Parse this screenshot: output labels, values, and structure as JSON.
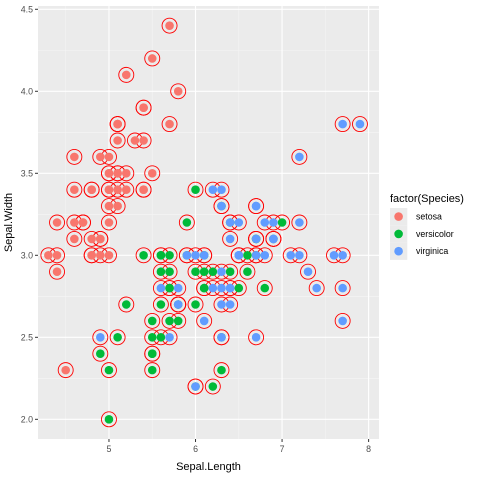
{
  "chart_data": {
    "type": "scatter",
    "xlabel": "Sepal.Length",
    "ylabel": "Sepal.Width",
    "xlim": [
      4.18,
      8.12
    ],
    "ylim": [
      1.88,
      4.52
    ],
    "x_ticks": [
      5,
      6,
      7,
      8
    ],
    "y_ticks": [
      2.0,
      2.5,
      3.0,
      3.5,
      4.0,
      4.5
    ],
    "x_tick_labels": [
      "5",
      "6",
      "7",
      "8"
    ],
    "y_tick_labels": [
      "2.0",
      "2.5",
      "3.0",
      "3.5",
      "4.0",
      "4.5"
    ],
    "grid": true,
    "legend": {
      "title": "factor(Species)",
      "position": "right",
      "entries": [
        {
          "label": "setosa",
          "color": "#F8766D"
        },
        {
          "label": "versicolor",
          "color": "#00BA38"
        },
        {
          "label": "virginica",
          "color": "#619CFF"
        }
      ]
    },
    "ring_color": "#FF0000",
    "series": [
      {
        "name": "setosa",
        "color": "#F8766D",
        "x": [
          5.1,
          4.9,
          4.7,
          4.6,
          5.0,
          5.4,
          4.6,
          5.0,
          4.4,
          4.9,
          5.4,
          4.8,
          4.8,
          4.3,
          5.8,
          5.7,
          5.4,
          5.1,
          5.7,
          5.1,
          5.4,
          5.1,
          4.6,
          5.1,
          4.8,
          5.0,
          5.0,
          5.2,
          5.2,
          4.7,
          4.8,
          5.4,
          5.2,
          5.5,
          4.9,
          5.0,
          5.5,
          4.9,
          4.4,
          5.1,
          5.0,
          4.5,
          4.4,
          5.0,
          5.1,
          4.8,
          5.1,
          4.6,
          5.3,
          5.0
        ],
        "y": [
          3.5,
          3.0,
          3.2,
          3.1,
          3.6,
          3.9,
          3.4,
          3.4,
          2.9,
          3.1,
          3.7,
          3.4,
          3.0,
          3.0,
          4.0,
          4.4,
          3.9,
          3.5,
          3.8,
          3.8,
          3.4,
          3.7,
          3.6,
          3.3,
          3.4,
          3.0,
          3.4,
          3.5,
          3.4,
          3.2,
          3.1,
          3.4,
          4.1,
          4.2,
          3.1,
          3.2,
          3.5,
          3.6,
          3.0,
          3.4,
          3.5,
          2.3,
          3.2,
          3.5,
          3.8,
          3.0,
          3.8,
          3.2,
          3.7,
          3.3
        ]
      },
      {
        "name": "versicolor",
        "color": "#00BA38",
        "x": [
          7.0,
          6.4,
          6.9,
          5.5,
          6.5,
          5.7,
          6.3,
          4.9,
          6.6,
          5.2,
          5.0,
          5.9,
          6.0,
          6.1,
          5.6,
          6.7,
          5.6,
          5.8,
          6.2,
          5.6,
          5.9,
          6.1,
          6.3,
          6.1,
          6.4,
          6.6,
          6.8,
          6.7,
          6.0,
          5.7,
          5.5,
          5.5,
          5.8,
          6.0,
          5.4,
          6.0,
          6.7,
          6.3,
          5.6,
          5.5,
          5.5,
          6.1,
          5.8,
          5.0,
          5.6,
          5.7,
          5.7,
          6.2,
          5.1,
          5.7
        ],
        "y": [
          3.2,
          3.2,
          3.1,
          2.3,
          2.8,
          2.8,
          3.3,
          2.4,
          2.9,
          2.7,
          2.0,
          3.0,
          2.2,
          2.9,
          2.9,
          3.1,
          3.0,
          2.7,
          2.2,
          2.5,
          3.2,
          2.8,
          2.5,
          2.8,
          2.9,
          3.0,
          2.8,
          3.0,
          2.9,
          2.6,
          2.4,
          2.4,
          2.7,
          2.7,
          3.0,
          3.4,
          3.1,
          2.3,
          3.0,
          2.5,
          2.6,
          3.0,
          2.6,
          2.3,
          2.7,
          3.0,
          2.9,
          2.9,
          2.5,
          2.8
        ]
      },
      {
        "name": "virginica",
        "color": "#619CFF",
        "x": [
          6.3,
          5.8,
          7.1,
          6.3,
          6.5,
          7.6,
          4.9,
          7.3,
          6.7,
          7.2,
          6.5,
          6.4,
          6.8,
          5.7,
          5.8,
          6.4,
          6.5,
          7.7,
          7.7,
          6.0,
          6.9,
          5.6,
          7.7,
          6.3,
          6.7,
          7.2,
          6.2,
          6.1,
          6.4,
          7.2,
          7.4,
          7.9,
          6.4,
          6.3,
          6.1,
          7.7,
          6.3,
          6.4,
          6.0,
          6.9,
          6.7,
          6.9,
          5.8,
          6.8,
          6.7,
          6.7,
          6.3,
          6.5,
          6.2,
          5.9
        ],
        "y": [
          3.3,
          2.7,
          3.0,
          2.9,
          3.0,
          3.0,
          2.5,
          2.9,
          2.5,
          3.6,
          3.2,
          2.7,
          3.0,
          2.5,
          2.8,
          3.2,
          3.0,
          3.8,
          2.6,
          2.2,
          3.2,
          2.8,
          2.8,
          2.7,
          3.3,
          3.2,
          2.8,
          3.0,
          2.8,
          3.0,
          2.8,
          3.8,
          2.8,
          2.8,
          2.6,
          3.0,
          3.4,
          3.1,
          3.0,
          3.1,
          3.1,
          3.1,
          2.7,
          3.2,
          3.3,
          3.0,
          2.5,
          3.0,
          3.4,
          3.0
        ]
      }
    ]
  }
}
